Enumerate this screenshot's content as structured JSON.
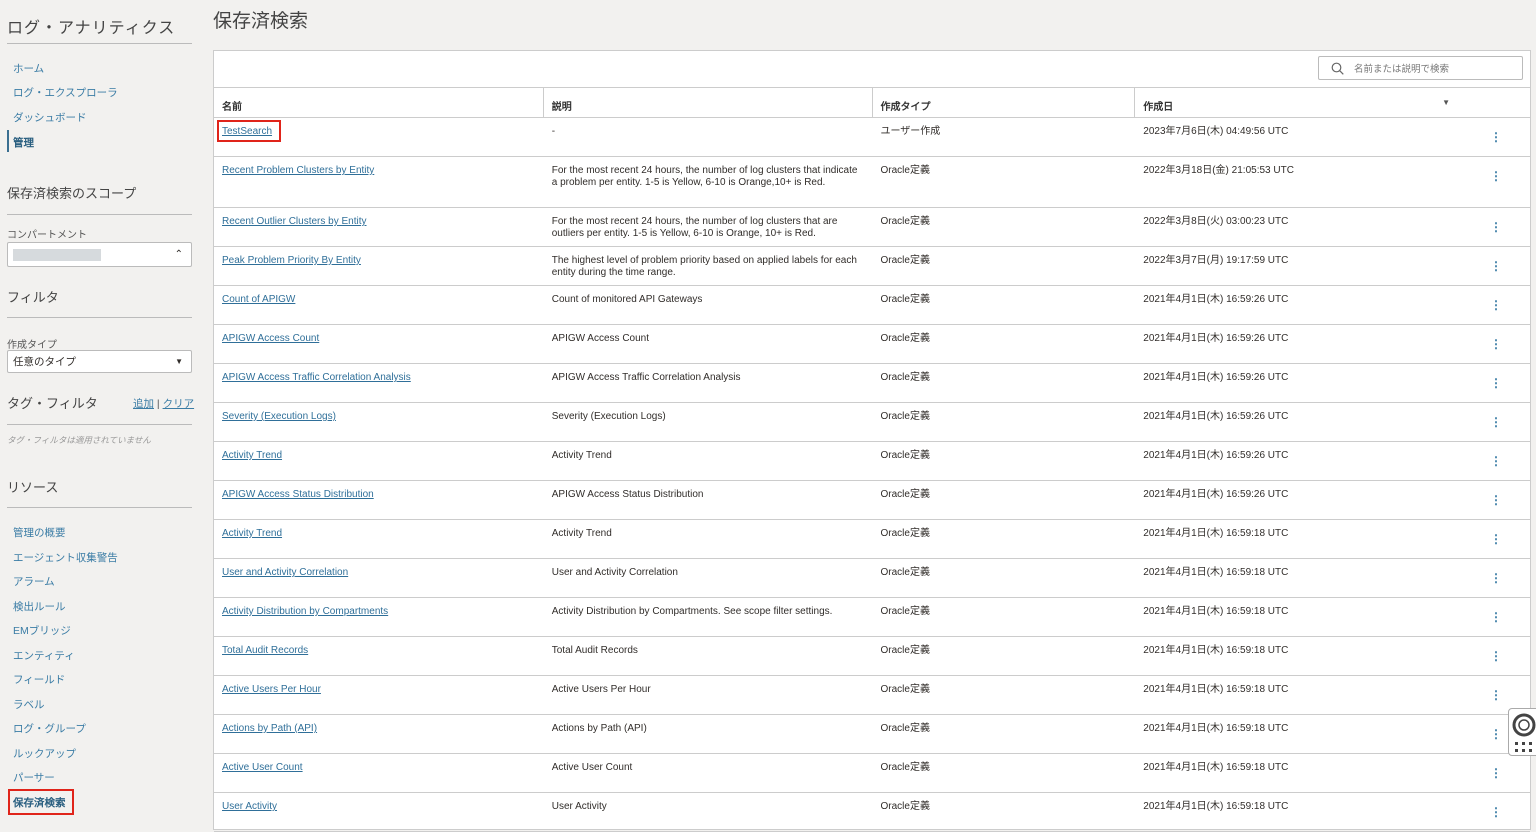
{
  "app_title": "ログ・アナリティクス",
  "nav": [
    {
      "label": "ホーム"
    },
    {
      "label": "ログ・エクスプローラ"
    },
    {
      "label": "ダッシュボード"
    },
    {
      "label": "管理",
      "active": true
    }
  ],
  "scope": {
    "title": "保存済検索のスコープ",
    "compartment_label": "コンパートメント"
  },
  "filter": {
    "title": "フィルタ",
    "type_label": "作成タイプ",
    "type_value": "任意のタイプ"
  },
  "tag_filter": {
    "title": "タグ・フィルタ",
    "add": "追加",
    "sep": "|",
    "clear": "クリア",
    "note": "タグ・フィルタは適用されていません"
  },
  "resources": {
    "title": "リソース",
    "items": [
      "管理の概要",
      "エージェント収集警告",
      "アラーム",
      "検出ルール",
      "EMブリッジ",
      "エンティティ",
      "フィールド",
      "ラベル",
      "ログ・グループ",
      "ルックアップ",
      "パーサー",
      "保存済検索"
    ]
  },
  "page_title": "保存済検索",
  "search_placeholder": "名前または説明で検索",
  "columns": [
    "名前",
    "説明",
    "作成タイプ",
    "作成日"
  ],
  "rows": [
    {
      "name": "TestSearch",
      "desc": "-",
      "type": "ユーザー作成",
      "date": "2023年7月6日(木) 04:49:56 UTC"
    },
    {
      "name": "Recent Problem Clusters by Entity",
      "desc": "For the most recent 24 hours, the number of log clusters that indicate a problem per entity. 1-5 is Yellow, 6-10 is Orange,10+ is Red.",
      "type": "Oracle定義",
      "date": "2022年3月18日(金) 21:05:53 UTC"
    },
    {
      "name": "Recent Outlier Clusters by Entity",
      "desc": "For the most recent 24 hours, the number of log clusters that are outliers per entity. 1-5 is Yellow, 6-10 is Orange, 10+ is Red.",
      "type": "Oracle定義",
      "date": "2022年3月8日(火) 03:00:23 UTC"
    },
    {
      "name": "Peak Problem Priority By Entity",
      "desc": "The highest level of problem priority based on applied labels for each entity during the time range.",
      "type": "Oracle定義",
      "date": "2022年3月7日(月) 19:17:59 UTC"
    },
    {
      "name": "Count of APIGW",
      "desc": "Count of monitored API Gateways",
      "type": "Oracle定義",
      "date": "2021年4月1日(木) 16:59:26 UTC"
    },
    {
      "name": "APIGW Access Count",
      "desc": "APIGW Access Count",
      "type": "Oracle定義",
      "date": "2021年4月1日(木) 16:59:26 UTC"
    },
    {
      "name": "APIGW Access Traffic Correlation Analysis",
      "desc": "APIGW Access Traffic Correlation Analysis",
      "type": "Oracle定義",
      "date": "2021年4月1日(木) 16:59:26 UTC"
    },
    {
      "name": "Severity (Execution Logs)",
      "desc": "Severity (Execution Logs)",
      "type": "Oracle定義",
      "date": "2021年4月1日(木) 16:59:26 UTC"
    },
    {
      "name": "Activity Trend",
      "desc": "Activity Trend",
      "type": "Oracle定義",
      "date": "2021年4月1日(木) 16:59:26 UTC"
    },
    {
      "name": "APIGW Access Status Distribution",
      "desc": "APIGW Access Status Distribution",
      "type": "Oracle定義",
      "date": "2021年4月1日(木) 16:59:26 UTC"
    },
    {
      "name": "Activity Trend",
      "desc": "Activity Trend",
      "type": "Oracle定義",
      "date": "2021年4月1日(木) 16:59:18 UTC"
    },
    {
      "name": "User and Activity Correlation",
      "desc": "User and Activity Correlation",
      "type": "Oracle定義",
      "date": "2021年4月1日(木) 16:59:18 UTC"
    },
    {
      "name": "Activity Distribution by Compartments",
      "desc": "Activity Distribution by Compartments. See scope filter settings.",
      "type": "Oracle定義",
      "date": "2021年4月1日(木) 16:59:18 UTC"
    },
    {
      "name": "Total Audit Records",
      "desc": "Total Audit Records",
      "type": "Oracle定義",
      "date": "2021年4月1日(木) 16:59:18 UTC"
    },
    {
      "name": "Active Users Per Hour",
      "desc": "Active Users Per Hour",
      "type": "Oracle定義",
      "date": "2021年4月1日(木) 16:59:18 UTC"
    },
    {
      "name": "Actions by Path (API)",
      "desc": "Actions by Path (API)",
      "type": "Oracle定義",
      "date": "2021年4月1日(木) 16:59:18 UTC"
    },
    {
      "name": "Active User Count",
      "desc": "Active User Count",
      "type": "Oracle定義",
      "date": "2021年4月1日(木) 16:59:18 UTC"
    },
    {
      "name": "User Activity",
      "desc": "User Activity",
      "type": "Oracle定義",
      "date": "2021年4月1日(木) 16:59:18 UTC"
    }
  ],
  "highlight_color": "#e0241a"
}
